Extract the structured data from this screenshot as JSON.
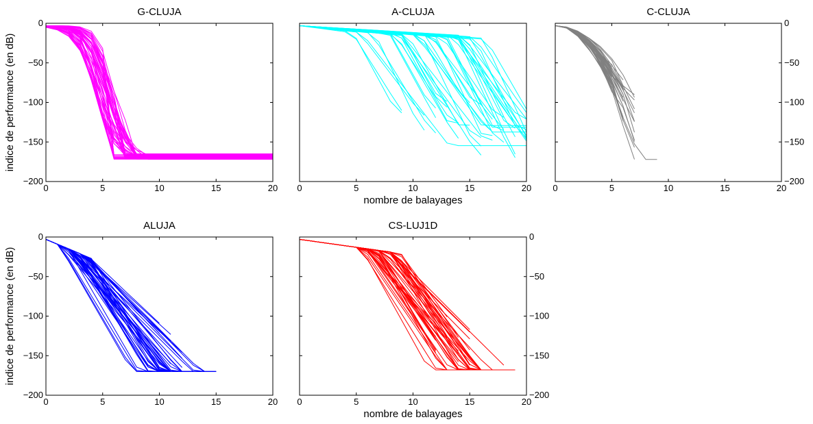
{
  "chart_data": [
    {
      "type": "line",
      "title": "G-CLUJA",
      "color": "#ff00ff",
      "xlim": [
        0,
        20
      ],
      "ylim": [
        -200,
        0
      ],
      "xticks": [
        0,
        5,
        10,
        15,
        20
      ],
      "yticks": [
        0,
        -50,
        -100,
        -150,
        -200
      ],
      "ylabel": "indice de performance (en dB)",
      "xlabel": "",
      "yaxis_side": "left",
      "grid": false
    },
    {
      "type": "line",
      "title": "A-CLUJA",
      "color": "#00ffff",
      "xlim": [
        0,
        20
      ],
      "ylim": [
        -200,
        0
      ],
      "xticks": [
        0,
        5,
        10,
        15,
        20
      ],
      "yticks": [],
      "ylabel": "",
      "xlabel": "nombre de balayages",
      "yaxis_side": "none",
      "grid": false
    },
    {
      "type": "line",
      "title": "C-CLUJA",
      "color": "#808080",
      "xlim": [
        0,
        20
      ],
      "ylim": [
        -200,
        0
      ],
      "xticks": [
        0,
        5,
        10,
        15,
        20
      ],
      "yticks": [
        0,
        -50,
        -100,
        -150,
        -200
      ],
      "ylabel": "",
      "xlabel": "",
      "yaxis_side": "right",
      "grid": false
    },
    {
      "type": "line",
      "title": "ALUJA",
      "color": "#0000ff",
      "xlim": [
        0,
        20
      ],
      "ylim": [
        -200,
        0
      ],
      "xticks": [
        0,
        5,
        10,
        15,
        20
      ],
      "yticks": [
        0,
        -50,
        -100,
        -150,
        -200
      ],
      "ylabel": "indice de performance (en dB)",
      "xlabel": "",
      "yaxis_side": "left",
      "grid": false
    },
    {
      "type": "line",
      "title": "CS-LUJ1D",
      "color": "#ff0000",
      "xlim": [
        0,
        20
      ],
      "ylim": [
        -200,
        0
      ],
      "xticks": [
        0,
        5,
        10,
        15,
        20
      ],
      "yticks": [
        0,
        -50,
        -100,
        -150,
        -200
      ],
      "ylabel": "",
      "xlabel": "nombre de balayages",
      "yaxis_side": "right",
      "grid": false
    }
  ]
}
